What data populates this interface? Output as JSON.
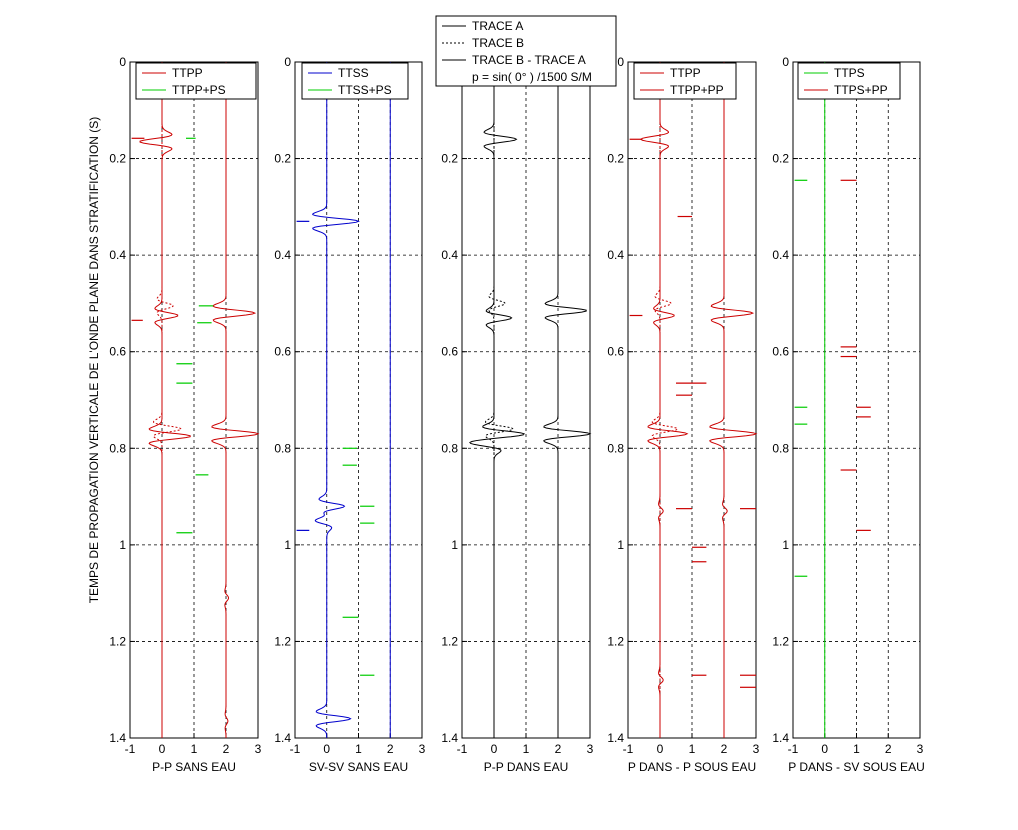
{
  "figure": {
    "ylabel": "TEMPS DE PROPAGATION VERTICALE DE L'ONDE PLANE DANS STRATIFICATION (S)"
  },
  "chart_data": [
    {
      "type": "line",
      "xlabel": "P-P SANS EAU",
      "xlim": [
        -1,
        3
      ],
      "ylim": [
        0,
        1.4
      ],
      "y_reversed": true,
      "xticks": [
        "-1",
        "0",
        "1",
        "2",
        "3"
      ],
      "yticks": [
        "0",
        "0.2",
        "0.4",
        "0.6",
        "0.8",
        "1",
        "1.2",
        "1.4"
      ],
      "grid": "dashed",
      "legend": {
        "position": "top-right",
        "entries": [
          {
            "label": "TTPP",
            "color": "#cc0000"
          },
          {
            "label": "TTPP+PS",
            "color": "#00cc00"
          }
        ]
      },
      "traces": [
        {
          "offset": 0,
          "color": "#cc0000",
          "style": "solid",
          "pulses": [
            {
              "t": 0.165,
              "amp": -0.7
            },
            {
              "t": 0.525,
              "amp": 0.5
            },
            {
              "t": 0.775,
              "amp": 0.9
            }
          ]
        },
        {
          "offset": 0,
          "color": "#cc0000",
          "style": "dashed",
          "pulses": [
            {
              "t": 0.505,
              "amp": 0.35
            },
            {
              "t": 0.76,
              "amp": 0.6
            }
          ]
        },
        {
          "offset": 2,
          "color": "#cc0000",
          "style": "solid",
          "pulses": [
            {
              "t": 0.52,
              "amp": 0.9
            },
            {
              "t": 0.77,
              "amp": 1.0
            },
            {
              "t": 1.11,
              "amp": 0.08
            },
            {
              "t": 1.365,
              "amp": 0.06
            }
          ]
        }
      ],
      "spikes": [
        {
          "t": 0.158,
          "x0": -0.95,
          "x1": -0.55,
          "color": "#cc0000"
        },
        {
          "t": 0.535,
          "x0": -0.95,
          "x1": -0.6,
          "color": "#cc0000"
        },
        {
          "t": 0.158,
          "x0": 0.75,
          "x1": 1.05,
          "color": "#00cc00"
        },
        {
          "t": 0.505,
          "x0": 1.15,
          "x1": 1.6,
          "color": "#00cc00"
        },
        {
          "t": 0.54,
          "x0": 1.1,
          "x1": 1.55,
          "color": "#00cc00"
        },
        {
          "t": 0.625,
          "x0": 0.45,
          "x1": 0.95,
          "color": "#00cc00"
        },
        {
          "t": 0.665,
          "x0": 0.45,
          "x1": 0.95,
          "color": "#00cc00"
        },
        {
          "t": 0.855,
          "x0": 1.05,
          "x1": 1.45,
          "color": "#00cc00"
        },
        {
          "t": 0.975,
          "x0": 0.45,
          "x1": 0.95,
          "color": "#00cc00"
        }
      ]
    },
    {
      "type": "line",
      "xlabel": "SV-SV SANS EAU",
      "xlim": [
        -1,
        3
      ],
      "ylim": [
        0,
        1.4
      ],
      "y_reversed": true,
      "xticks": [
        "-1",
        "0",
        "1",
        "2",
        "3"
      ],
      "yticks": [
        "0",
        "0.2",
        "0.4",
        "0.6",
        "0.8",
        "1",
        "1.2",
        "1.4"
      ],
      "grid": "dashed",
      "legend": {
        "position": "top-right",
        "entries": [
          {
            "label": "TTSS",
            "color": "#0000cc"
          },
          {
            "label": "TTSS+PS",
            "color": "#00cc00"
          }
        ]
      },
      "traces": [
        {
          "offset": 0,
          "color": "#0000cc",
          "style": "solid",
          "pulses": [
            {
              "t": 0.33,
              "amp": 1.0
            },
            {
              "t": 0.92,
              "amp": 0.55
            },
            {
              "t": 0.95,
              "amp": -0.35
            },
            {
              "t": 1.36,
              "amp": 0.75
            }
          ]
        },
        {
          "offset": 2,
          "color": "#0000cc",
          "style": "solid",
          "pulses": []
        }
      ],
      "spikes": [
        {
          "t": 0.33,
          "x0": -0.95,
          "x1": -0.55,
          "color": "#0000cc"
        },
        {
          "t": 0.97,
          "x0": -0.95,
          "x1": -0.55,
          "color": "#0000cc"
        },
        {
          "t": 0.8,
          "x0": 0.5,
          "x1": 0.95,
          "color": "#00cc00"
        },
        {
          "t": 0.835,
          "x0": 0.5,
          "x1": 0.95,
          "color": "#00cc00"
        },
        {
          "t": 0.92,
          "x0": 1.05,
          "x1": 1.5,
          "color": "#00cc00"
        },
        {
          "t": 0.955,
          "x0": 1.05,
          "x1": 1.5,
          "color": "#00cc00"
        },
        {
          "t": 1.15,
          "x0": 0.5,
          "x1": 1.0,
          "color": "#00cc00"
        },
        {
          "t": 1.27,
          "x0": 1.05,
          "x1": 1.5,
          "color": "#00cc00"
        }
      ]
    },
    {
      "type": "line",
      "xlabel": "P-P DANS EAU",
      "xlim": [
        -1,
        3
      ],
      "ylim": [
        0,
        1.4
      ],
      "y_reversed": true,
      "xticks": [
        "-1",
        "0",
        "1",
        "2",
        "3"
      ],
      "yticks": [
        "0",
        "0.2",
        "0.4",
        "0.6",
        "0.8",
        "1",
        "1.2",
        "1.4"
      ],
      "grid": "dashed",
      "legend": {
        "position": "top-center",
        "entries": [
          {
            "label": "TRACE A",
            "color": "#000000",
            "style": "solid"
          },
          {
            "label": "TRACE B",
            "color": "#000000",
            "style": "dashed"
          },
          {
            "label": "TRACE B - TRACE A",
            "color": "#000000",
            "style": "solid"
          }
        ],
        "note": "p = sin( 0° ) /1500 S/M"
      },
      "traces": [
        {
          "offset": 0,
          "color": "#000000",
          "style": "solid",
          "pulses": [
            {
              "t": 0.16,
              "amp": 0.7
            },
            {
              "t": 0.53,
              "amp": 0.55
            },
            {
              "t": 0.77,
              "amp": 0.8
            },
            {
              "t": 0.79,
              "amp": -0.5
            }
          ]
        },
        {
          "offset": 0,
          "color": "#000000",
          "style": "dashed",
          "pulses": [
            {
              "t": 0.5,
              "amp": 0.35
            },
            {
              "t": 0.76,
              "amp": 0.6
            }
          ]
        },
        {
          "offset": 2,
          "color": "#000000",
          "style": "solid",
          "pulses": [
            {
              "t": 0.515,
              "amp": 0.9
            },
            {
              "t": 0.77,
              "amp": 1.0
            }
          ]
        }
      ],
      "spikes": []
    },
    {
      "type": "line",
      "xlabel": "P DANS - P SOUS EAU",
      "xlim": [
        -1,
        3
      ],
      "ylim": [
        0,
        1.4
      ],
      "y_reversed": true,
      "xticks": [
        "-1",
        "0",
        "1",
        "2",
        "3"
      ],
      "yticks": [
        "0",
        "0.2",
        "0.4",
        "0.6",
        "0.8",
        "1",
        "1.2",
        "1.4"
      ],
      "grid": "dashed",
      "legend": {
        "position": "top-right",
        "entries": [
          {
            "label": "TTPP",
            "color": "#cc0000"
          },
          {
            "label": "TTPP+PP",
            "color": "#cc0000"
          }
        ]
      },
      "traces": [
        {
          "offset": 0,
          "color": "#cc0000",
          "style": "solid",
          "pulses": [
            {
              "t": 0.16,
              "amp": -0.6
            },
            {
              "t": 0.525,
              "amp": 0.45
            },
            {
              "t": 0.77,
              "amp": 0.85
            },
            {
              "t": 0.93,
              "amp": 0.1
            },
            {
              "t": 1.28,
              "amp": 0.1
            }
          ]
        },
        {
          "offset": 0,
          "color": "#cc0000",
          "style": "dashed",
          "pulses": [
            {
              "t": 0.5,
              "amp": 0.35
            },
            {
              "t": 0.76,
              "amp": 0.55
            }
          ]
        },
        {
          "offset": 2,
          "color": "#cc0000",
          "style": "solid",
          "pulses": [
            {
              "t": 0.52,
              "amp": 0.9
            },
            {
              "t": 0.77,
              "amp": 1.0
            },
            {
              "t": 0.93,
              "amp": 0.1
            }
          ]
        }
      ],
      "spikes": [
        {
          "t": 0.16,
          "x0": -0.95,
          "x1": -0.55,
          "color": "#cc0000"
        },
        {
          "t": 0.525,
          "x0": -0.95,
          "x1": -0.55,
          "color": "#cc0000"
        },
        {
          "t": 0.32,
          "x0": 0.55,
          "x1": 1.0,
          "color": "#cc0000"
        },
        {
          "t": 0.665,
          "x0": 0.5,
          "x1": 1.45,
          "color": "#cc0000"
        },
        {
          "t": 0.69,
          "x0": 0.5,
          "x1": 1.0,
          "color": "#cc0000"
        },
        {
          "t": 0.925,
          "x0": 0.5,
          "x1": 1.0,
          "color": "#cc0000"
        },
        {
          "t": 1.005,
          "x0": 1.0,
          "x1": 1.45,
          "color": "#cc0000"
        },
        {
          "t": 1.035,
          "x0": 1.0,
          "x1": 1.45,
          "color": "#cc0000"
        },
        {
          "t": 1.27,
          "x0": 1.0,
          "x1": 1.45,
          "color": "#cc0000"
        },
        {
          "t": 0.925,
          "x0": 2.5,
          "x1": 3.0,
          "color": "#cc0000"
        },
        {
          "t": 1.27,
          "x0": 2.5,
          "x1": 3.0,
          "color": "#cc0000"
        },
        {
          "t": 1.295,
          "x0": 2.5,
          "x1": 3.0,
          "color": "#cc0000"
        }
      ]
    },
    {
      "type": "line",
      "xlabel": "P DANS - SV SOUS EAU",
      "xlim": [
        -1,
        3
      ],
      "ylim": [
        0,
        1.4
      ],
      "y_reversed": true,
      "xticks": [
        "-1",
        "0",
        "1",
        "2",
        "3"
      ],
      "yticks": [
        "0",
        "0.2",
        "0.4",
        "0.6",
        "0.8",
        "1",
        "1.2",
        "1.4"
      ],
      "grid": "dashed",
      "legend": {
        "position": "top-right",
        "entries": [
          {
            "label": "TTPS",
            "color": "#00cc00"
          },
          {
            "label": "TTPS+PP",
            "color": "#cc0000"
          }
        ]
      },
      "traces": [
        {
          "offset": 0,
          "color": "#00cc00",
          "style": "solid",
          "pulses": []
        }
      ],
      "spikes": [
        {
          "t": 0.245,
          "x0": -0.95,
          "x1": -0.55,
          "color": "#00cc00"
        },
        {
          "t": 0.715,
          "x0": -0.95,
          "x1": -0.55,
          "color": "#00cc00"
        },
        {
          "t": 0.75,
          "x0": -0.95,
          "x1": -0.55,
          "color": "#00cc00"
        },
        {
          "t": 1.065,
          "x0": -0.95,
          "x1": -0.55,
          "color": "#00cc00"
        },
        {
          "t": 0.245,
          "x0": 0.5,
          "x1": 1.0,
          "color": "#cc0000"
        },
        {
          "t": 0.59,
          "x0": 0.5,
          "x1": 1.0,
          "color": "#cc0000"
        },
        {
          "t": 0.61,
          "x0": 0.5,
          "x1": 1.0,
          "color": "#cc0000"
        },
        {
          "t": 0.715,
          "x0": 1.0,
          "x1": 1.45,
          "color": "#cc0000"
        },
        {
          "t": 0.735,
          "x0": 1.0,
          "x1": 1.45,
          "color": "#cc0000"
        },
        {
          "t": 0.845,
          "x0": 0.5,
          "x1": 1.0,
          "color": "#cc0000"
        },
        {
          "t": 0.97,
          "x0": 1.0,
          "x1": 1.45,
          "color": "#cc0000"
        }
      ]
    }
  ]
}
